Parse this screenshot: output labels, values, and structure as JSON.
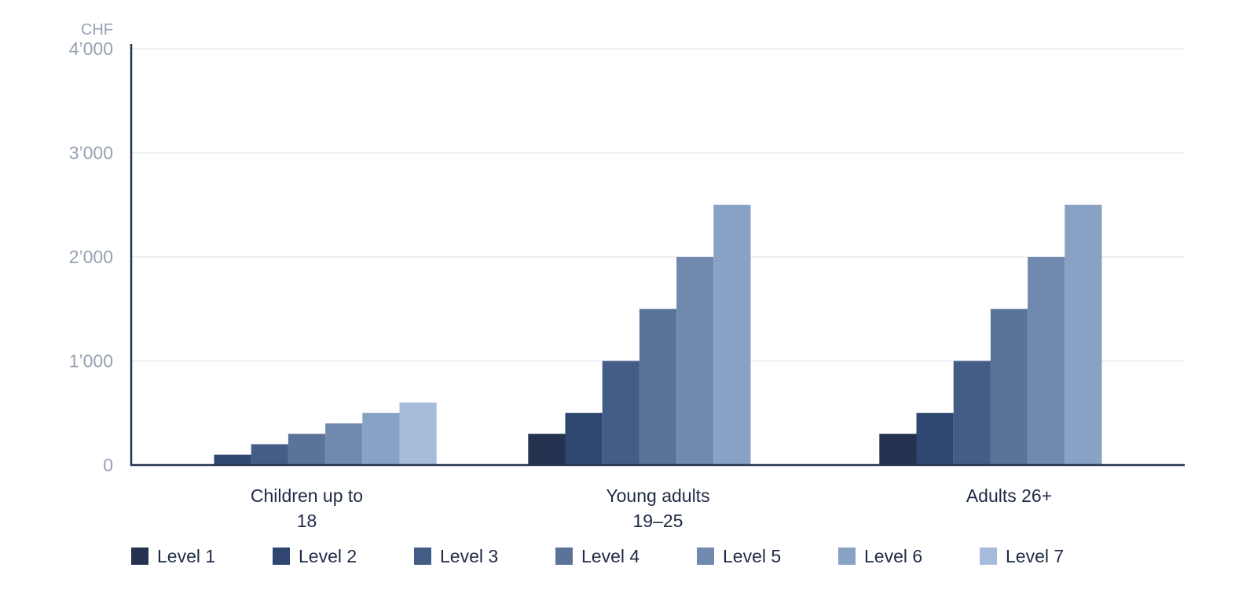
{
  "chart_data": {
    "type": "bar",
    "y_unit": "CHF",
    "ylim": [
      0,
      4000
    ],
    "yticks": [
      0,
      1000,
      2000,
      3000,
      4000
    ],
    "ytick_labels": [
      "0",
      "1’000",
      "2’000",
      "3’000",
      "4’000"
    ],
    "grid": true,
    "legend_position": "bottom",
    "categories": [
      [
        "Children up to",
        "18"
      ],
      [
        "Young adults",
        "19–25"
      ],
      [
        "Adults 26+"
      ]
    ],
    "series": [
      {
        "name": "Level 1",
        "color": "#25324f",
        "values": [
          0,
          300,
          300
        ]
      },
      {
        "name": "Level 2",
        "color": "#2e4670",
        "values": [
          100,
          500,
          500
        ]
      },
      {
        "name": "Level 3",
        "color": "#445d86",
        "values": [
          200,
          1000,
          1000
        ]
      },
      {
        "name": "Level 4",
        "color": "#5c7399",
        "values": [
          300,
          1500,
          1500
        ]
      },
      {
        "name": "Level 5",
        "color": "#7189ae",
        "values": [
          400,
          2000,
          2000
        ]
      },
      {
        "name": "Level 6",
        "color": "#88a2c6",
        "values": [
          500,
          2500,
          2500
        ]
      },
      {
        "name": "Level 7",
        "color": "#a7bcda",
        "values": [
          600,
          null,
          null
        ]
      }
    ]
  }
}
